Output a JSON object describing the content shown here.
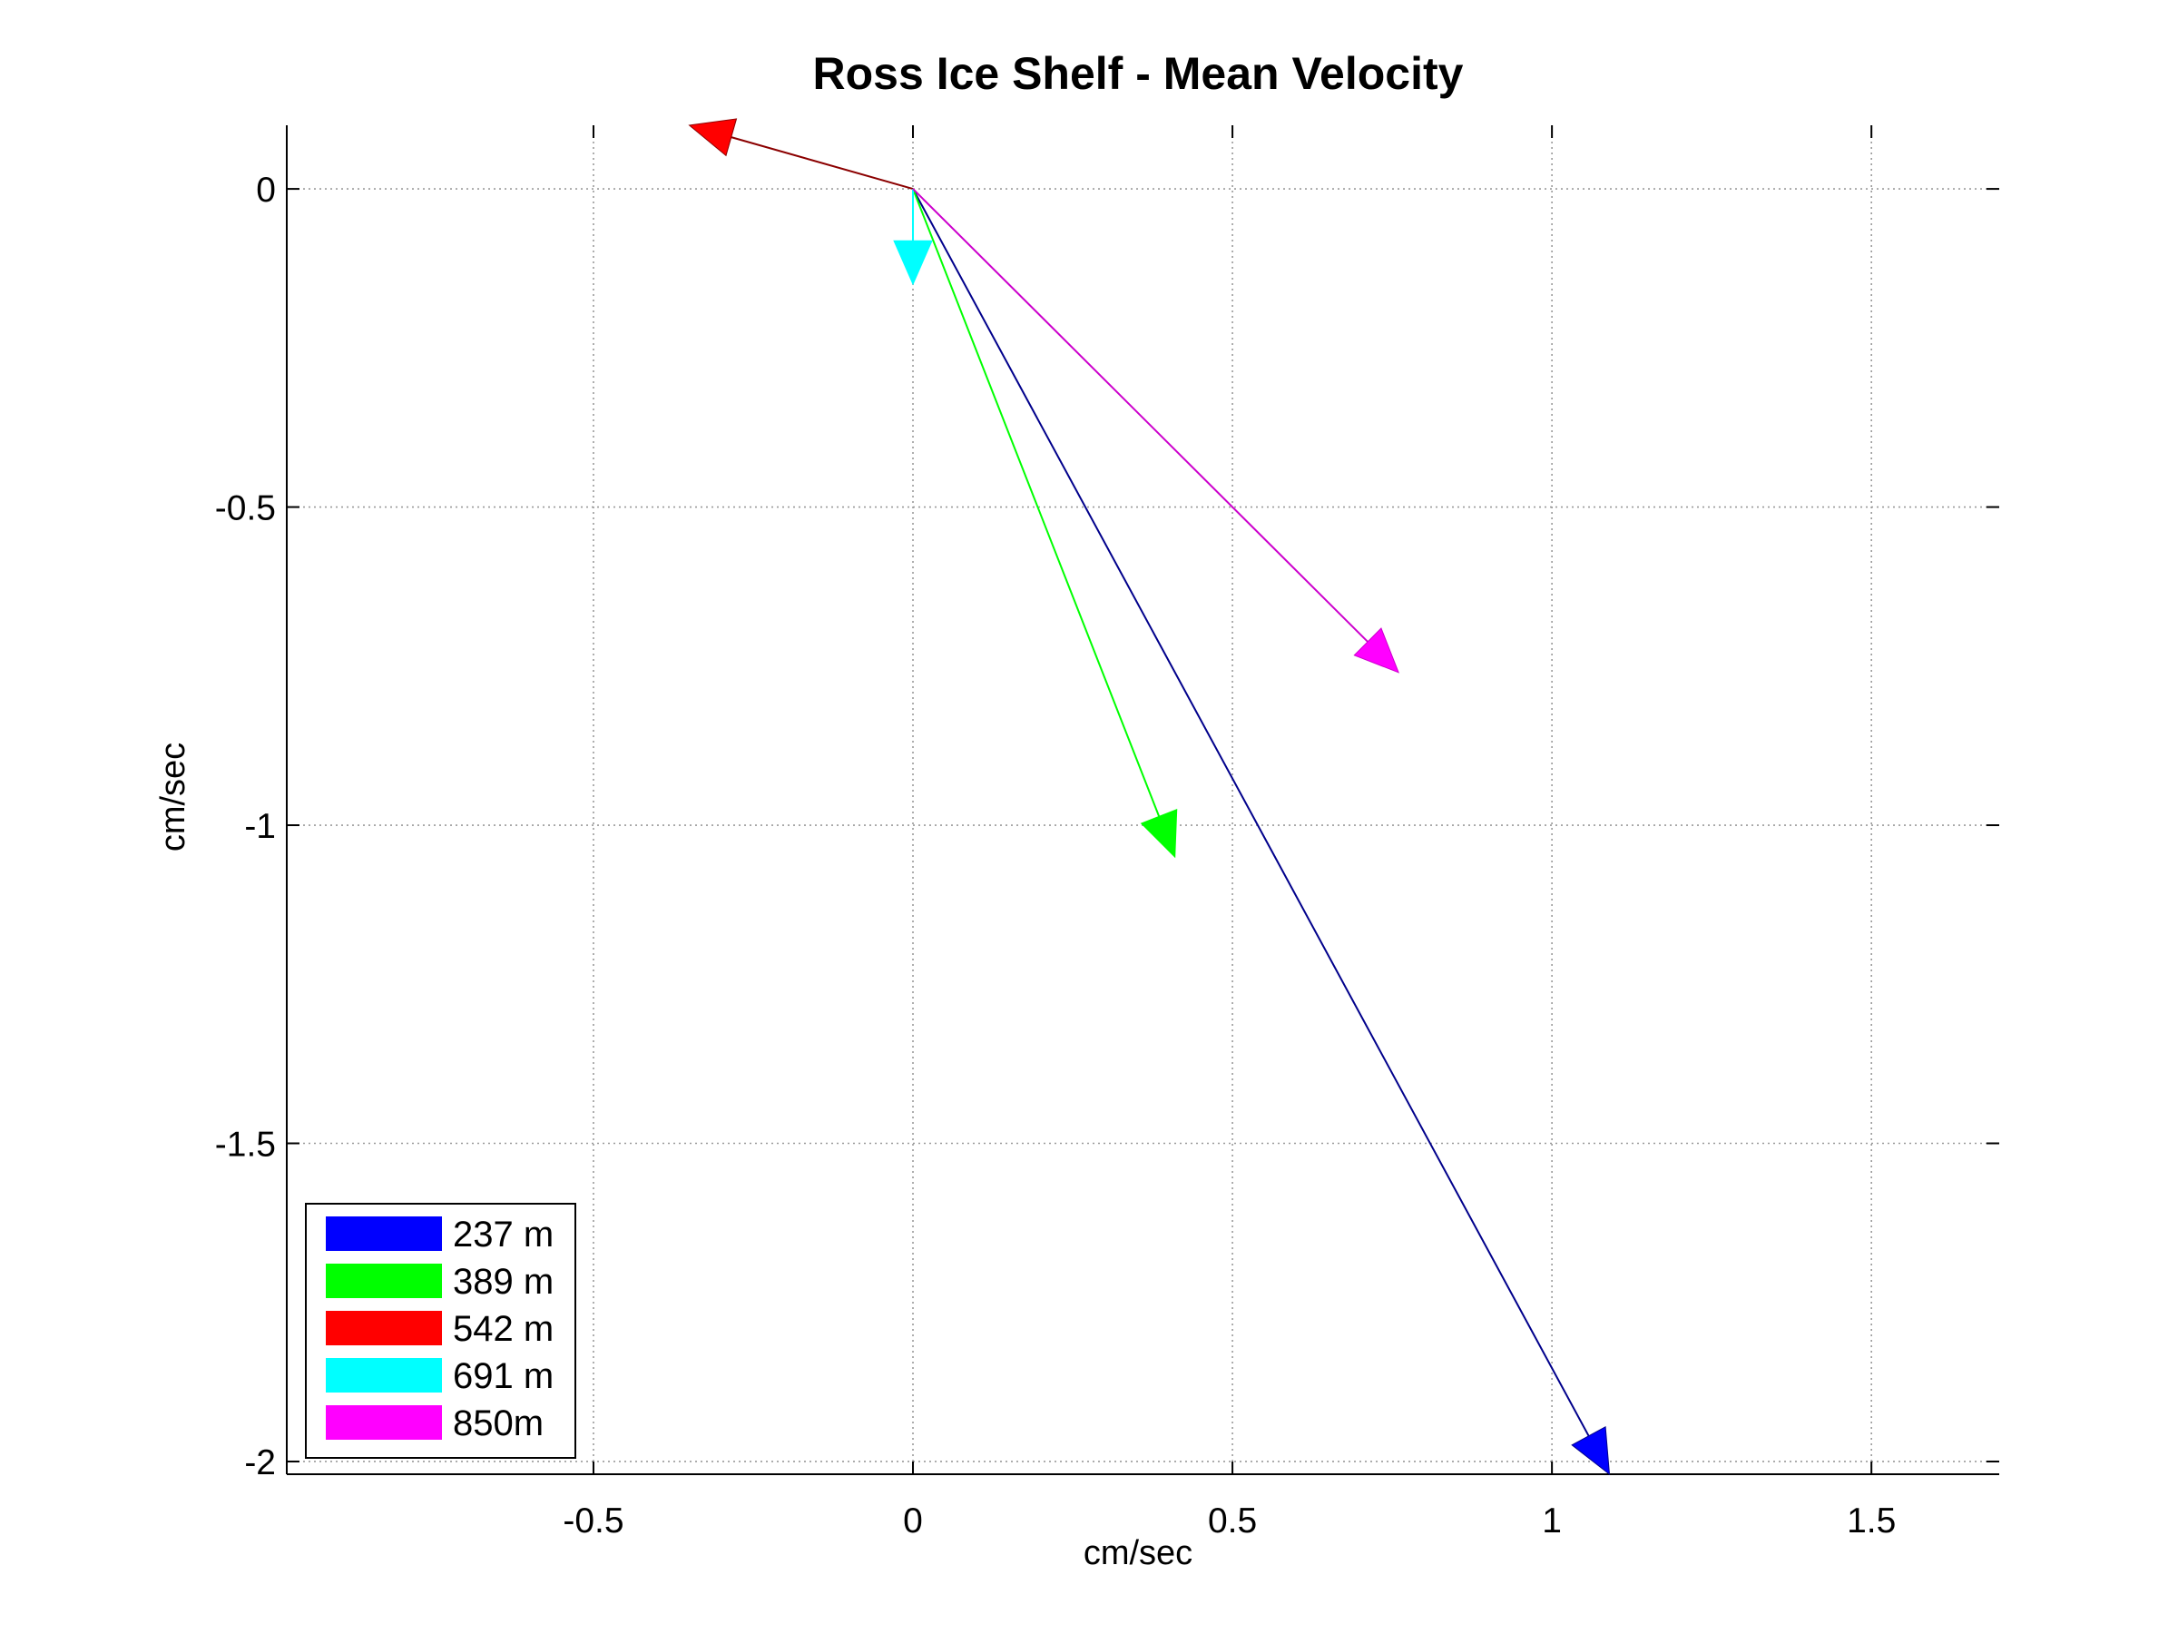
{
  "chart_data": {
    "type": "quiver",
    "title": "Ross Ice Shelf - Mean Velocity",
    "xlabel": "cm/sec",
    "ylabel": "cm/sec",
    "xlim": [
      -0.98,
      1.7
    ],
    "ylim": [
      -2.02,
      0.1
    ],
    "xticks": [
      -0.5,
      0,
      0.5,
      1,
      1.5
    ],
    "xtick_labels": [
      "-0.5",
      "0",
      "0.5",
      "1",
      "1.5"
    ],
    "yticks": [
      0,
      -0.5,
      -1,
      -1.5,
      -2
    ],
    "ytick_labels": [
      "0",
      "-0.5",
      "-1",
      "-1.5",
      "-2"
    ],
    "grid": true,
    "legend_position": "bottom-left",
    "origin": [
      0,
      0
    ],
    "series": [
      {
        "name": "237 m",
        "u": 1.09,
        "v": -2.02,
        "line_color": "#00008B",
        "head_color": "#0000FF"
      },
      {
        "name": "389 m",
        "u": 0.41,
        "v": -1.05,
        "line_color": "#00FF00",
        "head_color": "#00FF00"
      },
      {
        "name": "542 m",
        "u": -0.35,
        "v": 0.1,
        "line_color": "#8B0000",
        "head_color": "#FF0000"
      },
      {
        "name": "691 m",
        "u": 0.0,
        "v": -0.15,
        "line_color": "#00FFFF",
        "head_color": "#00FFFF"
      },
      {
        "name": "850m",
        "u": 0.76,
        "v": -0.76,
        "line_color": "#CC00CC",
        "head_color": "#FF00FF"
      }
    ]
  }
}
